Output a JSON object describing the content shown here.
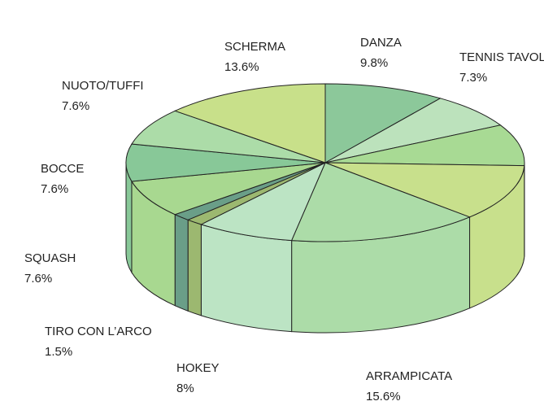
{
  "chart_data": {
    "type": "pie3d",
    "categories": [
      "DANZA",
      "TENNIS TAVOLO",
      null,
      null,
      "ARRAMPICATA",
      "HOKEY",
      null,
      "TIRO CON L’ARCO",
      "SQUASH",
      "BOCCE",
      "NUOTO/TUFFI",
      "SCHERMA"
    ],
    "values": [
      9.8,
      7.3,
      8.5,
      11.5,
      15.6,
      8,
      1.4,
      1.5,
      7.6,
      7.6,
      7.6,
      13.6
    ],
    "value_labels": [
      "9.8%",
      "7.3%",
      null,
      null,
      "15.6%",
      "8%",
      null,
      "1.5%",
      "7.6%",
      "7.6%",
      "7.6%",
      "13.6%"
    ],
    "colors": [
      "#8cc89a",
      "#bce2bc",
      "#a8da94",
      "#c8e08c",
      "#acdca8",
      "#bce4c4",
      "#9cb870",
      "#6a9e88",
      "#a8d890",
      "#88c898",
      "#acdca8",
      "#c8e08a"
    ]
  }
}
